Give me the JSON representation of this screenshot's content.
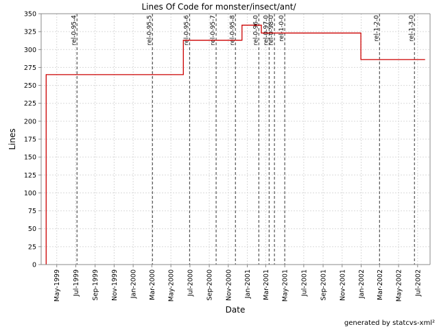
{
  "chart_data": {
    "type": "line",
    "step": true,
    "title": "Lines Of Code for monster/insect/ant/",
    "xlabel": "Date",
    "ylabel": "Lines",
    "ylim": [
      0,
      350
    ],
    "y_ticks": [
      0,
      25,
      50,
      75,
      100,
      125,
      150,
      175,
      200,
      225,
      250,
      275,
      300,
      325,
      350
    ],
    "xlim": [
      "1999-03-12",
      "2002-08-10"
    ],
    "x_ticks": [
      {
        "date": "1999-05-01",
        "label": "May-1999"
      },
      {
        "date": "1999-07-01",
        "label": "Jul-1999"
      },
      {
        "date": "1999-09-01",
        "label": "Sep-1999"
      },
      {
        "date": "1999-11-01",
        "label": "Nov-1999"
      },
      {
        "date": "2000-01-01",
        "label": "Jan-2000"
      },
      {
        "date": "2000-03-01",
        "label": "Mar-2000"
      },
      {
        "date": "2000-05-01",
        "label": "May-2000"
      },
      {
        "date": "2000-07-01",
        "label": "Jul-2000"
      },
      {
        "date": "2000-09-01",
        "label": "Sep-2000"
      },
      {
        "date": "2000-11-01",
        "label": "Nov-2000"
      },
      {
        "date": "2001-01-01",
        "label": "Jan-2001"
      },
      {
        "date": "2001-03-01",
        "label": "Mar-2001"
      },
      {
        "date": "2001-05-01",
        "label": "May-2001"
      },
      {
        "date": "2001-07-01",
        "label": "Jul-2001"
      },
      {
        "date": "2001-09-01",
        "label": "Sep-2001"
      },
      {
        "date": "2001-11-01",
        "label": "Nov-2001"
      },
      {
        "date": "2002-01-01",
        "label": "Jan-2002"
      },
      {
        "date": "2002-03-01",
        "label": "Mar-2002"
      },
      {
        "date": "2002-05-01",
        "label": "May-2002"
      },
      {
        "date": "2002-07-01",
        "label": "Jul-2002"
      }
    ],
    "series": [
      {
        "name": "",
        "color": "#cc0000",
        "points": [
          {
            "x": "1999-03-28",
            "y": 0
          },
          {
            "x": "1999-03-28",
            "y": 265
          },
          {
            "x": "2000-06-10",
            "y": 265
          },
          {
            "x": "2000-06-10",
            "y": 313
          },
          {
            "x": "2000-12-15",
            "y": 313
          },
          {
            "x": "2000-12-15",
            "y": 334
          },
          {
            "x": "2001-02-15",
            "y": 334
          },
          {
            "x": "2001-02-15",
            "y": 323
          },
          {
            "x": "2001-12-31",
            "y": 323
          },
          {
            "x": "2001-12-31",
            "y": 286
          },
          {
            "x": "2002-07-25",
            "y": 286
          }
        ]
      }
    ],
    "markers": [
      {
        "label": "rel-0-95-4",
        "date": "1999-07-05"
      },
      {
        "label": "rel-0-95-5",
        "date": "2000-03-03"
      },
      {
        "label": "rel-0-95-6",
        "date": "2000-06-30"
      },
      {
        "label": "rel-0-95-7",
        "date": "2000-09-23"
      },
      {
        "label": "rel-0-95-8",
        "date": "2000-11-24"
      },
      {
        "label": "rel-0-96-0",
        "date": "2001-02-07"
      },
      {
        "label": "rel-0-97-0",
        "date": "2001-03-12"
      },
      {
        "label": "rel-0-98-0",
        "date": "2001-03-29"
      },
      {
        "label": "rel-1-0-0",
        "date": "2001-05-01"
      },
      {
        "label": "rel-1-2-0",
        "date": "2002-03-01"
      },
      {
        "label": "rel-1-3-0",
        "date": "2002-06-21"
      }
    ],
    "grid": true,
    "legend": "none",
    "colors": {
      "line": "#cc0000",
      "marker": "#555555",
      "grid": "#d9d9d9",
      "axis": "#888888"
    }
  },
  "footer": "generated by statcvs-xml²"
}
